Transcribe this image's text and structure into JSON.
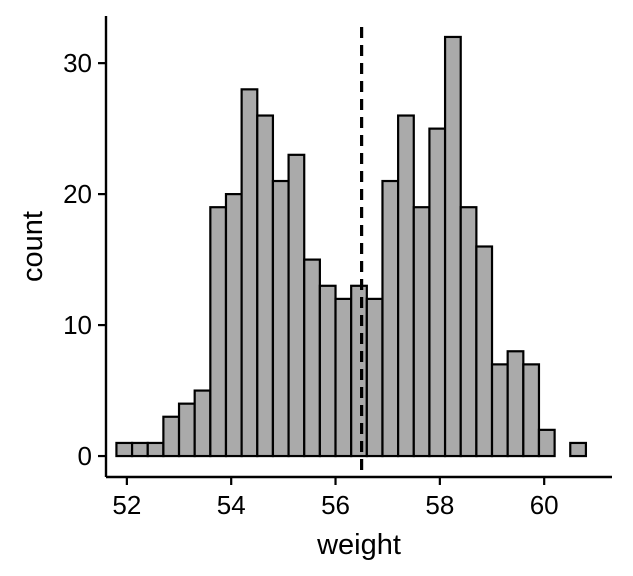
{
  "chart_data": {
    "type": "bar",
    "xlabel": "weight",
    "ylabel": "count",
    "x_ticks": [
      52,
      54,
      56,
      58,
      60
    ],
    "y_ticks": [
      0,
      10,
      20,
      30
    ],
    "xlim": [
      51.6,
      61.3
    ],
    "ylim": [
      -1.6,
      33.6
    ],
    "bin_width": 0.3,
    "bins": [
      {
        "x_start": 51.8,
        "count": 1
      },
      {
        "x_start": 52.1,
        "count": 1
      },
      {
        "x_start": 52.4,
        "count": 1
      },
      {
        "x_start": 52.7,
        "count": 3
      },
      {
        "x_start": 53.0,
        "count": 4
      },
      {
        "x_start": 53.3,
        "count": 5
      },
      {
        "x_start": 53.6,
        "count": 19
      },
      {
        "x_start": 53.9,
        "count": 20
      },
      {
        "x_start": 54.2,
        "count": 28
      },
      {
        "x_start": 54.5,
        "count": 26
      },
      {
        "x_start": 54.8,
        "count": 21
      },
      {
        "x_start": 55.1,
        "count": 23
      },
      {
        "x_start": 55.4,
        "count": 15
      },
      {
        "x_start": 55.7,
        "count": 13
      },
      {
        "x_start": 56.0,
        "count": 12
      },
      {
        "x_start": 56.3,
        "count": 13
      },
      {
        "x_start": 56.6,
        "count": 12
      },
      {
        "x_start": 56.9,
        "count": 21
      },
      {
        "x_start": 57.2,
        "count": 26
      },
      {
        "x_start": 57.5,
        "count": 19
      },
      {
        "x_start": 57.8,
        "count": 25
      },
      {
        "x_start": 58.1,
        "count": 32
      },
      {
        "x_start": 58.4,
        "count": 19
      },
      {
        "x_start": 58.7,
        "count": 16
      },
      {
        "x_start": 59.0,
        "count": 7
      },
      {
        "x_start": 59.3,
        "count": 8
      },
      {
        "x_start": 59.6,
        "count": 7
      },
      {
        "x_start": 59.9,
        "count": 2
      },
      {
        "x_start": 60.2,
        "count": 0
      },
      {
        "x_start": 60.5,
        "count": 1
      }
    ],
    "mean_line": 56.5,
    "grid": false,
    "legend": "none",
    "colors": {
      "bar_fill": "#aaaaaa",
      "bar_stroke": "#000000",
      "axis": "#000000",
      "mean_line": "#000000"
    }
  }
}
